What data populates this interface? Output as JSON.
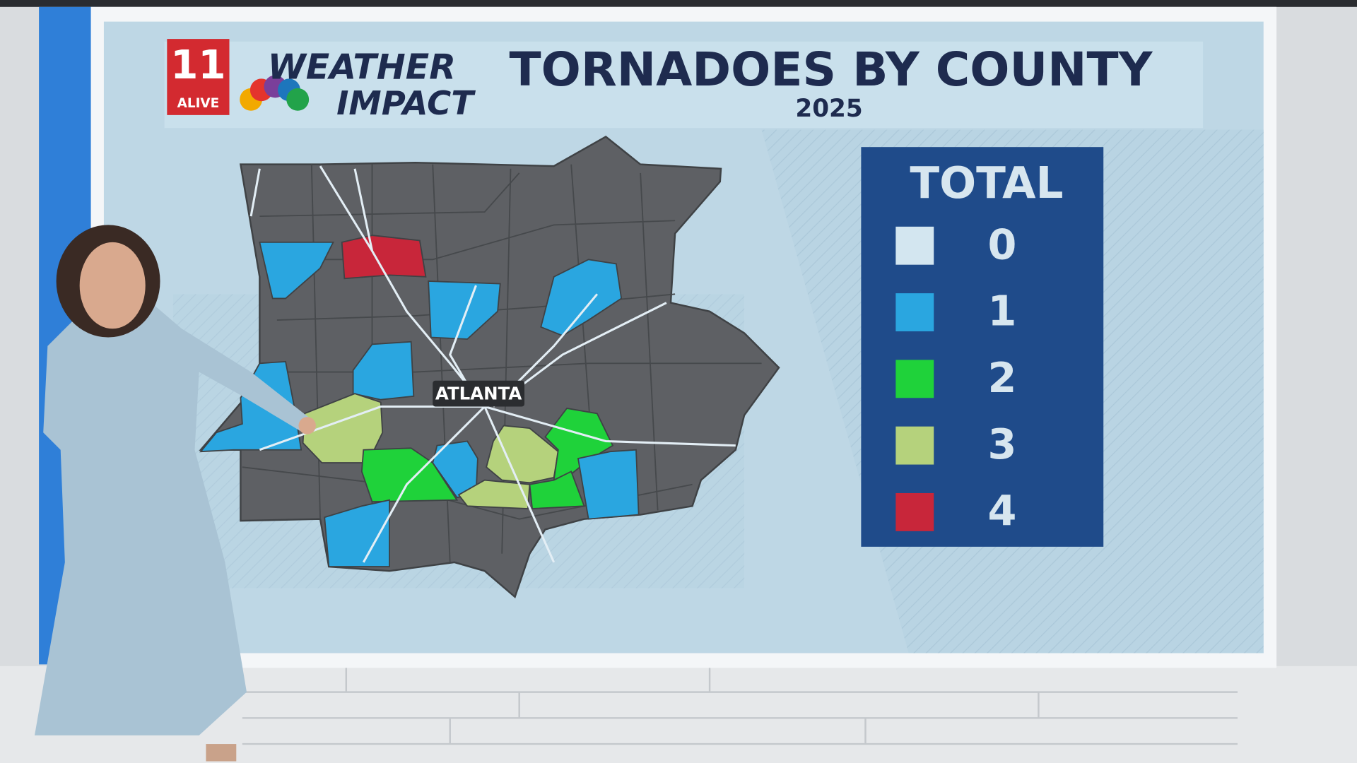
{
  "header": {
    "logo_number": "11",
    "logo_text": "ALIVE",
    "brand_top": "WEATHER",
    "brand_bottom": "IMPACT",
    "title": "TORNADOES BY COUNTY",
    "subtitle": "2025"
  },
  "map": {
    "city_label": "ATLANTA",
    "counties": [
      {
        "total": 4
      },
      {
        "total": 1
      },
      {
        "total": 1
      },
      {
        "total": 1
      },
      {
        "total": 1
      },
      {
        "total": 1
      },
      {
        "total": 3
      },
      {
        "total": 2
      },
      {
        "total": 1
      },
      {
        "total": 3
      },
      {
        "total": 2
      },
      {
        "total": 3
      },
      {
        "total": 2
      },
      {
        "total": 1
      },
      {
        "total": 1
      }
    ]
  },
  "legend": {
    "title": "TOTAL",
    "items": [
      {
        "total": 0,
        "color": "#d3e6f0"
      },
      {
        "total": 1,
        "color": "#2aa6e0"
      },
      {
        "total": 2,
        "color": "#1fd23a"
      },
      {
        "total": 3,
        "color": "#b5d27c"
      },
      {
        "total": 4,
        "color": "#c8263a"
      }
    ]
  }
}
